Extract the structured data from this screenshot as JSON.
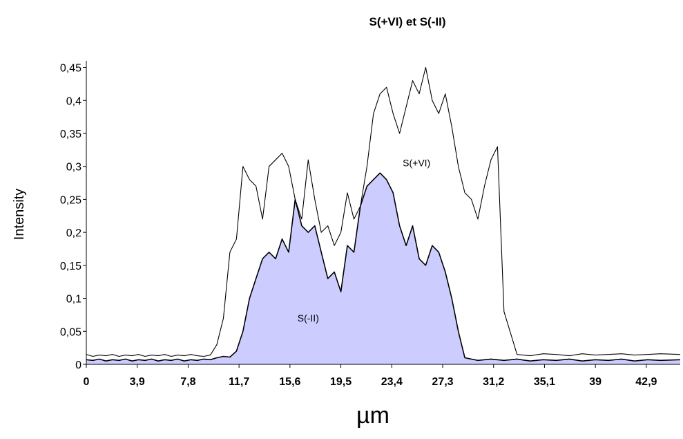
{
  "chart_data": {
    "type": "area",
    "title": "S(+VI) et S(-II)",
    "xlabel": "µm",
    "ylabel": "Intensity",
    "xlim": [
      0,
      45.5
    ],
    "ylim": [
      0,
      0.46
    ],
    "x_tick_values": [
      0,
      3.9,
      7.8,
      11.7,
      15.6,
      19.5,
      23.4,
      27.3,
      31.2,
      35.1,
      39,
      42.9
    ],
    "x_tick_labels": [
      "0",
      "3,9",
      "7,8",
      "11,7",
      "15,6",
      "19,5",
      "23,4",
      "27,3",
      "31,2",
      "35,1",
      "39",
      "42,9"
    ],
    "y_tick_values": [
      0,
      0.05,
      0.1,
      0.15,
      0.2,
      0.25,
      0.3,
      0.35,
      0.4,
      0.45
    ],
    "y_tick_labels": [
      "0",
      "0,05",
      "0,1",
      "0,15",
      "0,2",
      "0,25",
      "0,3",
      "0,35",
      "0,4",
      "0,45"
    ],
    "grid": false,
    "legend": "none",
    "series": [
      {
        "name": "S(+VI)",
        "color": "#000000",
        "fill": "none",
        "x": [
          0,
          0.5,
          1.0,
          1.5,
          2.0,
          2.5,
          3.0,
          3.5,
          4.0,
          4.5,
          5.0,
          5.5,
          6.0,
          6.5,
          7.0,
          7.5,
          8.0,
          8.5,
          9.0,
          9.5,
          10.0,
          10.5,
          11.0,
          11.5,
          12.0,
          12.5,
          13.0,
          13.5,
          14.0,
          14.5,
          15.0,
          15.5,
          16.0,
          16.5,
          17.0,
          17.5,
          18.0,
          18.5,
          19.0,
          19.5,
          20.0,
          20.5,
          21.0,
          21.5,
          22.0,
          22.5,
          23.0,
          23.5,
          24.0,
          24.5,
          25.0,
          25.5,
          26.0,
          26.5,
          27.0,
          27.5,
          28.0,
          28.5,
          29.0,
          29.5,
          30.0,
          30.5,
          31.0,
          31.5,
          32.0,
          33.0,
          34.0,
          35.0,
          36.0,
          37.0,
          38.0,
          39.0,
          40.0,
          41.0,
          42.0,
          43.0,
          44.0,
          45.5
        ],
        "values": [
          0.015,
          0.012,
          0.014,
          0.013,
          0.015,
          0.012,
          0.014,
          0.013,
          0.015,
          0.012,
          0.014,
          0.013,
          0.015,
          0.012,
          0.014,
          0.013,
          0.015,
          0.013,
          0.012,
          0.014,
          0.03,
          0.07,
          0.17,
          0.19,
          0.3,
          0.28,
          0.27,
          0.22,
          0.3,
          0.31,
          0.32,
          0.3,
          0.25,
          0.22,
          0.31,
          0.25,
          0.2,
          0.21,
          0.18,
          0.2,
          0.26,
          0.22,
          0.24,
          0.3,
          0.38,
          0.41,
          0.42,
          0.38,
          0.35,
          0.39,
          0.43,
          0.41,
          0.45,
          0.4,
          0.38,
          0.41,
          0.36,
          0.3,
          0.26,
          0.25,
          0.22,
          0.27,
          0.31,
          0.33,
          0.08,
          0.015,
          0.013,
          0.016,
          0.015,
          0.013,
          0.016,
          0.014,
          0.015,
          0.016,
          0.014,
          0.015,
          0.016,
          0.015
        ]
      },
      {
        "name": "S(-II)",
        "color": "#000000",
        "fill": "#ccccff",
        "x": [
          0,
          0.5,
          1.0,
          1.5,
          2.0,
          2.5,
          3.0,
          3.5,
          4.0,
          4.5,
          5.0,
          5.5,
          6.0,
          6.5,
          7.0,
          7.5,
          8.0,
          8.5,
          9.0,
          9.5,
          10.0,
          10.5,
          11.0,
          11.5,
          12.0,
          12.5,
          13.0,
          13.5,
          14.0,
          14.5,
          15.0,
          15.5,
          16.0,
          16.5,
          17.0,
          17.5,
          18.0,
          18.5,
          19.0,
          19.5,
          20.0,
          20.5,
          21.0,
          21.5,
          22.0,
          22.5,
          23.0,
          23.5,
          24.0,
          24.5,
          25.0,
          25.5,
          26.0,
          26.5,
          27.0,
          27.5,
          28.0,
          28.5,
          29.0,
          30.0,
          31.0,
          32.0,
          33.0,
          34.0,
          35.0,
          36.0,
          37.0,
          38.0,
          39.0,
          40.0,
          41.0,
          42.0,
          43.0,
          44.0,
          45.5
        ],
        "values": [
          0.007,
          0.006,
          0.008,
          0.005,
          0.007,
          0.006,
          0.008,
          0.005,
          0.007,
          0.006,
          0.008,
          0.005,
          0.007,
          0.006,
          0.008,
          0.005,
          0.007,
          0.006,
          0.008,
          0.007,
          0.01,
          0.012,
          0.011,
          0.02,
          0.05,
          0.1,
          0.13,
          0.16,
          0.17,
          0.16,
          0.19,
          0.17,
          0.25,
          0.21,
          0.2,
          0.21,
          0.17,
          0.13,
          0.14,
          0.11,
          0.18,
          0.17,
          0.24,
          0.27,
          0.28,
          0.29,
          0.28,
          0.26,
          0.21,
          0.18,
          0.21,
          0.16,
          0.15,
          0.18,
          0.17,
          0.14,
          0.1,
          0.05,
          0.01,
          0.006,
          0.008,
          0.006,
          0.008,
          0.005,
          0.007,
          0.006,
          0.008,
          0.005,
          0.007,
          0.006,
          0.008,
          0.005,
          0.007,
          0.006,
          0.007
        ]
      }
    ],
    "annotations": [
      {
        "text": "S(+VI)",
        "x": 25.3,
        "y": 0.3
      },
      {
        "text": "S(-II)",
        "x": 17.0,
        "y": 0.065
      }
    ]
  }
}
